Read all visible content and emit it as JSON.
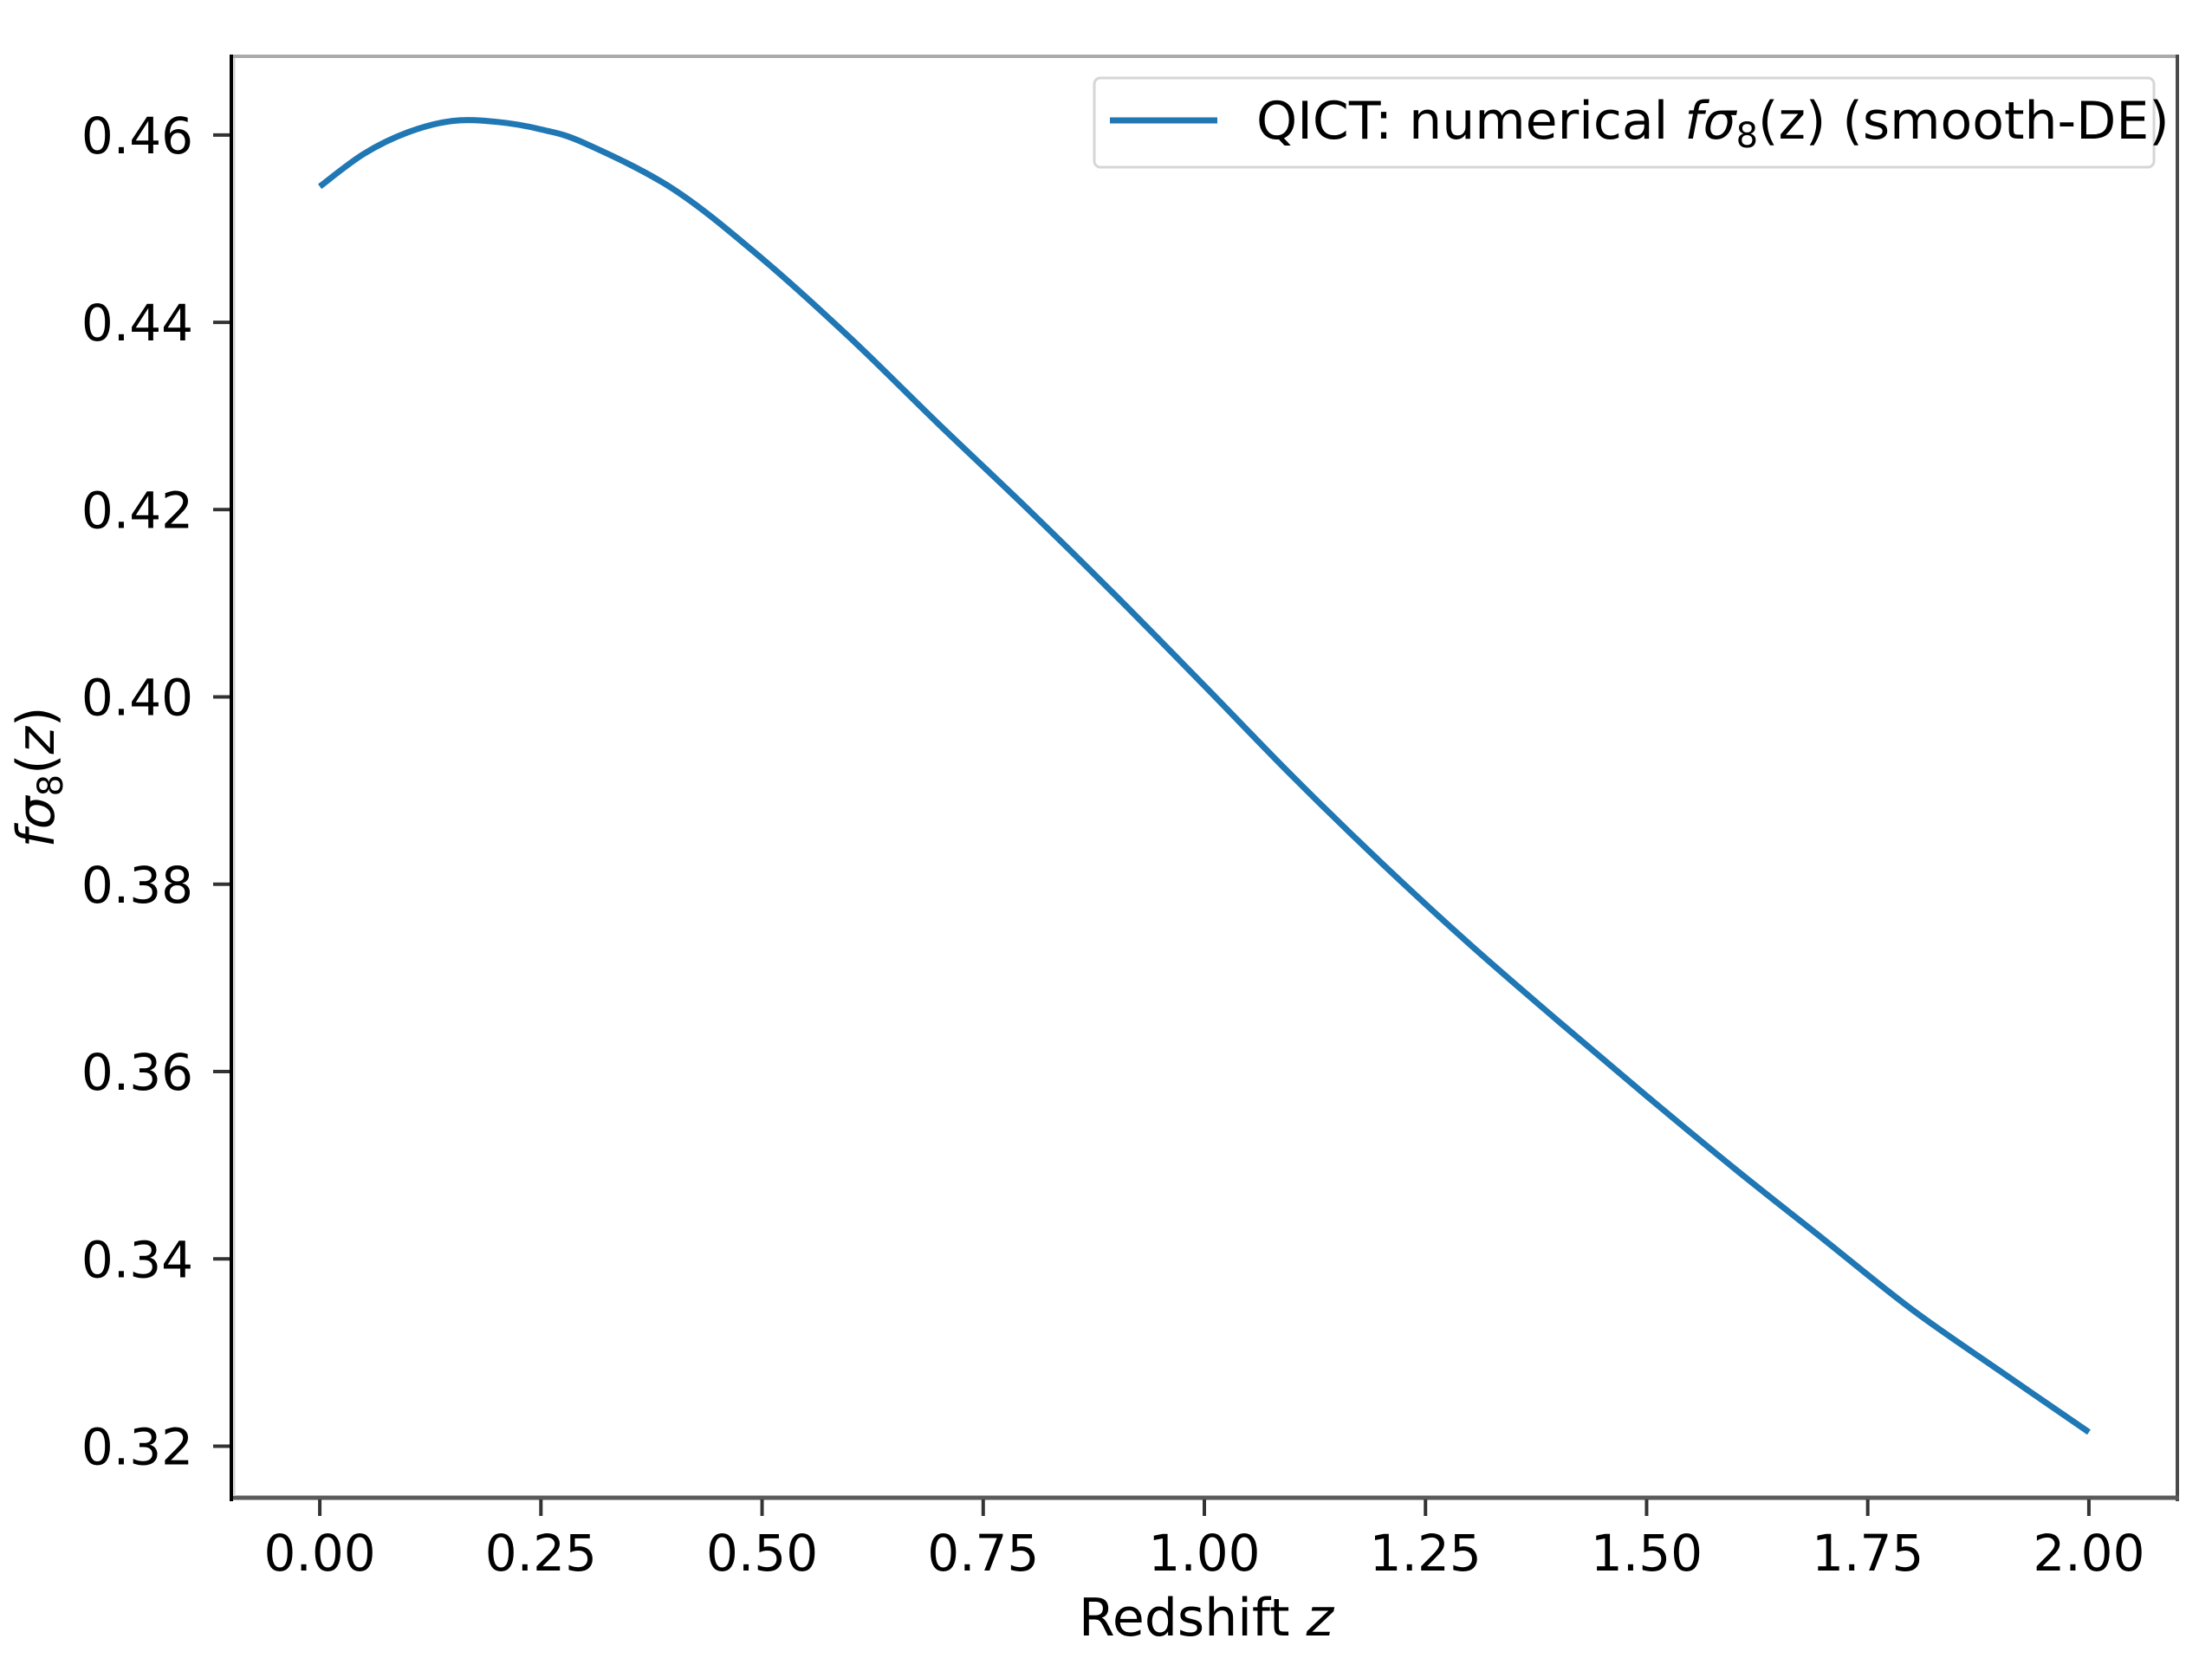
{
  "chart_data": {
    "type": "line",
    "title": "",
    "xlabel": "Redshift z",
    "ylabel": "fσ8(z)",
    "xlim": [
      -0.1,
      2.1
    ],
    "ylim": [
      0.3145,
      0.4684
    ],
    "grid": false,
    "legend_position": "upper right",
    "xticks": [
      0.0,
      0.25,
      0.5,
      0.75,
      1.0,
      1.25,
      1.5,
      1.75,
      2.0
    ],
    "xtick_labels": [
      "0.00",
      "0.25",
      "0.50",
      "0.75",
      "1.00",
      "1.25",
      "1.50",
      "1.75",
      "2.00"
    ],
    "yticks": [
      0.32,
      0.34,
      0.36,
      0.38,
      0.4,
      0.42,
      0.44,
      0.46
    ],
    "ytick_labels": [
      "0.32",
      "0.34",
      "0.36",
      "0.38",
      "0.40",
      "0.42",
      "0.44",
      "0.46"
    ],
    "series": [
      {
        "name": "QICT: numerical fσ8(z) (smooth-DE)",
        "color": "#1f77b4",
        "x": [
          0.0,
          0.05,
          0.1,
          0.15,
          0.2,
          0.25,
          0.3,
          0.4,
          0.5,
          0.6,
          0.7,
          0.8,
          0.9,
          1.0,
          1.1,
          1.2,
          1.3,
          1.4,
          1.5,
          1.6,
          1.7,
          1.8,
          1.9,
          2.0
        ],
        "y": [
          0.4545,
          0.458,
          0.4603,
          0.4615,
          0.4614,
          0.4606,
          0.4591,
          0.4542,
          0.4468,
          0.4383,
          0.4291,
          0.4201,
          0.4108,
          0.4012,
          0.3915,
          0.3823,
          0.3736,
          0.3654,
          0.3574,
          0.3496,
          0.3421,
          0.3346,
          0.328,
          0.3215
        ]
      }
    ]
  },
  "labels": {
    "xlabel_main": "Redshift ",
    "xlabel_var": "z",
    "ylabel_f": "f",
    "ylabel_sigma": "σ",
    "ylabel_sub": "8",
    "ylabel_open": "(",
    "ylabel_var": "z",
    "ylabel_close": ")"
  },
  "legend": {
    "prefix": "QICT: numerical ",
    "f": "f",
    "sigma": "σ",
    "sub": "8",
    "args": "(z)",
    "suffix": " (smooth-DE)"
  }
}
